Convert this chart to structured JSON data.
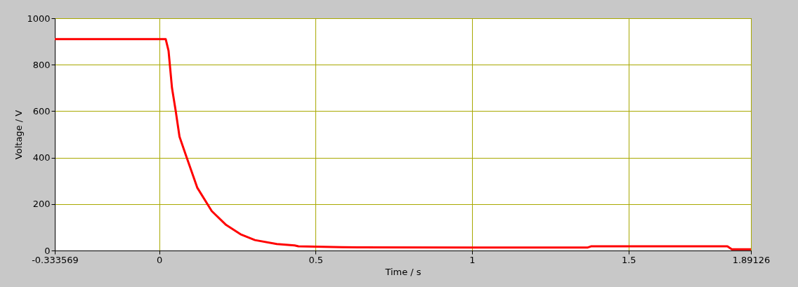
{
  "chart_data": {
    "type": "line",
    "xlabel": "Time / s",
    "ylabel": "Voltage / V",
    "xlim": [
      -0.333569,
      1.89126
    ],
    "xticks": [
      -0.333569,
      0,
      0.5,
      1,
      1.5,
      1.89126
    ],
    "ylim": [
      0,
      1000
    ],
    "yticks": [
      0,
      200,
      400,
      600,
      800,
      1000
    ],
    "grid": true,
    "marker": "none",
    "line_style": "solid",
    "series": [
      {
        "color": "#ff0000",
        "x": [
          -0.333569,
          0.0,
          0.021,
          0.03,
          0.041,
          0.053,
          0.065,
          0.088,
          0.122,
          0.168,
          0.214,
          0.26,
          0.306,
          0.376,
          0.433,
          0.445,
          0.583,
          1.0,
          1.37,
          1.38,
          1.816,
          1.83,
          1.89126
        ],
        "values": [
          910,
          910,
          910,
          860,
          700,
          600,
          490,
          400,
          270,
          170,
          110,
          70,
          45,
          28,
          22,
          18,
          14,
          13,
          13,
          18,
          18,
          5,
          5
        ]
      }
    ]
  }
}
